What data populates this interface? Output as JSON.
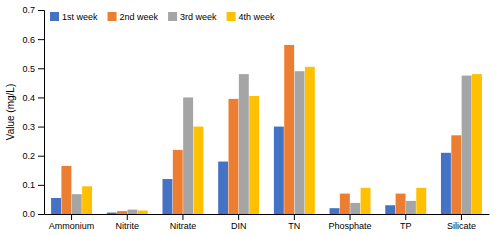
{
  "chart_data": {
    "type": "bar",
    "categories": [
      "Ammonium",
      "Nitrite",
      "Nitrate",
      "DIN",
      "TN",
      "Phosphate",
      "TP",
      "Silicate"
    ],
    "series": [
      {
        "name": "1st week",
        "color": "#4472C4",
        "values": [
          0.055,
          0.005,
          0.12,
          0.18,
          0.3,
          0.02,
          0.03,
          0.21
        ]
      },
      {
        "name": "2nd week",
        "color": "#ED7D31",
        "values": [
          0.165,
          0.01,
          0.22,
          0.395,
          0.58,
          0.07,
          0.07,
          0.27
        ]
      },
      {
        "name": "3rd week",
        "color": "#A5A5A5",
        "values": [
          0.068,
          0.015,
          0.4,
          0.48,
          0.49,
          0.038,
          0.045,
          0.475
        ]
      },
      {
        "name": "4th week",
        "color": "#FFC000",
        "values": [
          0.095,
          0.012,
          0.3,
          0.405,
          0.505,
          0.09,
          0.09,
          0.48
        ]
      }
    ],
    "ylabel": "Value (mg/L)",
    "ylim": [
      0,
      0.7
    ],
    "yticks": [
      {
        "value": 0.0,
        "label": "0.0"
      },
      0.1,
      0.2,
      0.3,
      0.4,
      0.5,
      0.6,
      0.7
    ],
    "grid": false,
    "legend": "upper left"
  }
}
